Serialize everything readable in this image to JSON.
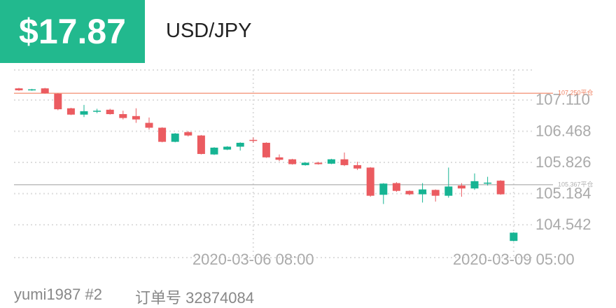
{
  "header": {
    "amount": "$17.87",
    "pair": "USD/JPY"
  },
  "footer": {
    "user": "yumi1987 #2",
    "order": "订单号 32874084"
  },
  "chart_data": {
    "type": "candlestick",
    "categories": [
      null,
      null,
      null,
      null,
      null,
      null,
      null,
      null,
      null,
      null,
      null,
      null,
      null,
      null,
      null,
      null,
      null,
      null,
      "2020-03-06 08:00",
      null,
      null,
      null,
      null,
      null,
      null,
      null,
      null,
      null,
      null,
      null,
      null,
      null,
      null,
      null,
      null,
      null,
      null,
      null,
      "2020-03-09 05:00"
    ],
    "open": [
      107.35,
      107.31,
      107.35,
      107.24,
      106.94,
      106.81,
      106.88,
      106.91,
      106.82,
      106.78,
      106.64,
      106.54,
      106.25,
      106.45,
      106.38,
      105.99,
      106.09,
      106.15,
      106.29,
      106.23,
      105.93,
      105.89,
      105.77,
      105.82,
      105.8,
      105.89,
      105.77,
      105.72,
      105.16,
      105.4,
      105.24,
      105.17,
      105.26,
      105.14,
      105.35,
      105.29,
      105.4,
      105.45,
      104.21
    ],
    "high": [
      107.36,
      107.34,
      107.36,
      107.25,
      106.95,
      107.01,
      106.93,
      106.93,
      106.89,
      106.94,
      106.75,
      106.55,
      106.43,
      106.47,
      106.39,
      106.14,
      106.16,
      106.24,
      106.34,
      106.24,
      105.99,
      105.9,
      105.83,
      105.84,
      105.9,
      106.03,
      105.84,
      105.73,
      105.4,
      105.42,
      105.25,
      105.4,
      105.27,
      105.72,
      105.4,
      105.6,
      105.53,
      105.46,
      104.39
    ],
    "low": [
      107.3,
      107.3,
      107.24,
      106.9,
      106.8,
      106.76,
      106.84,
      106.81,
      106.71,
      106.64,
      106.5,
      106.24,
      106.24,
      106.36,
      105.99,
      105.98,
      106.08,
      106.07,
      106.23,
      105.92,
      105.85,
      105.78,
      105.76,
      105.78,
      105.79,
      105.75,
      105.67,
      105.12,
      104.97,
      105.22,
      105.15,
      105.0,
      105.02,
      105.1,
      105.12,
      105.26,
      105.35,
      105.16,
      104.2
    ],
    "close": [
      107.31,
      107.33,
      107.25,
      106.92,
      106.81,
      106.88,
      106.89,
      106.82,
      106.74,
      106.71,
      106.54,
      106.25,
      106.42,
      106.38,
      106.0,
      106.13,
      106.15,
      106.23,
      106.27,
      105.93,
      105.88,
      105.79,
      105.82,
      105.79,
      105.89,
      105.77,
      105.7,
      105.14,
      105.39,
      105.24,
      105.17,
      105.27,
      105.14,
      105.33,
      105.29,
      105.44,
      105.41,
      105.17,
      104.38
    ],
    "up_color": "#16b493",
    "down_color": "#eb5b60",
    "ylim": [
      103.867,
      107.728
    ],
    "yticks": [
      {
        "value": 107.11,
        "label": "107.110"
      },
      106.468,
      105.826,
      105.184,
      104.542
    ],
    "grid": true,
    "reference_lines": [
      {
        "value": 107.25,
        "label": "107.250平仓",
        "color": "#f08060"
      },
      {
        "value": 105.367,
        "label": "105.367平仓",
        "color": "#b0b0b0"
      }
    ]
  }
}
